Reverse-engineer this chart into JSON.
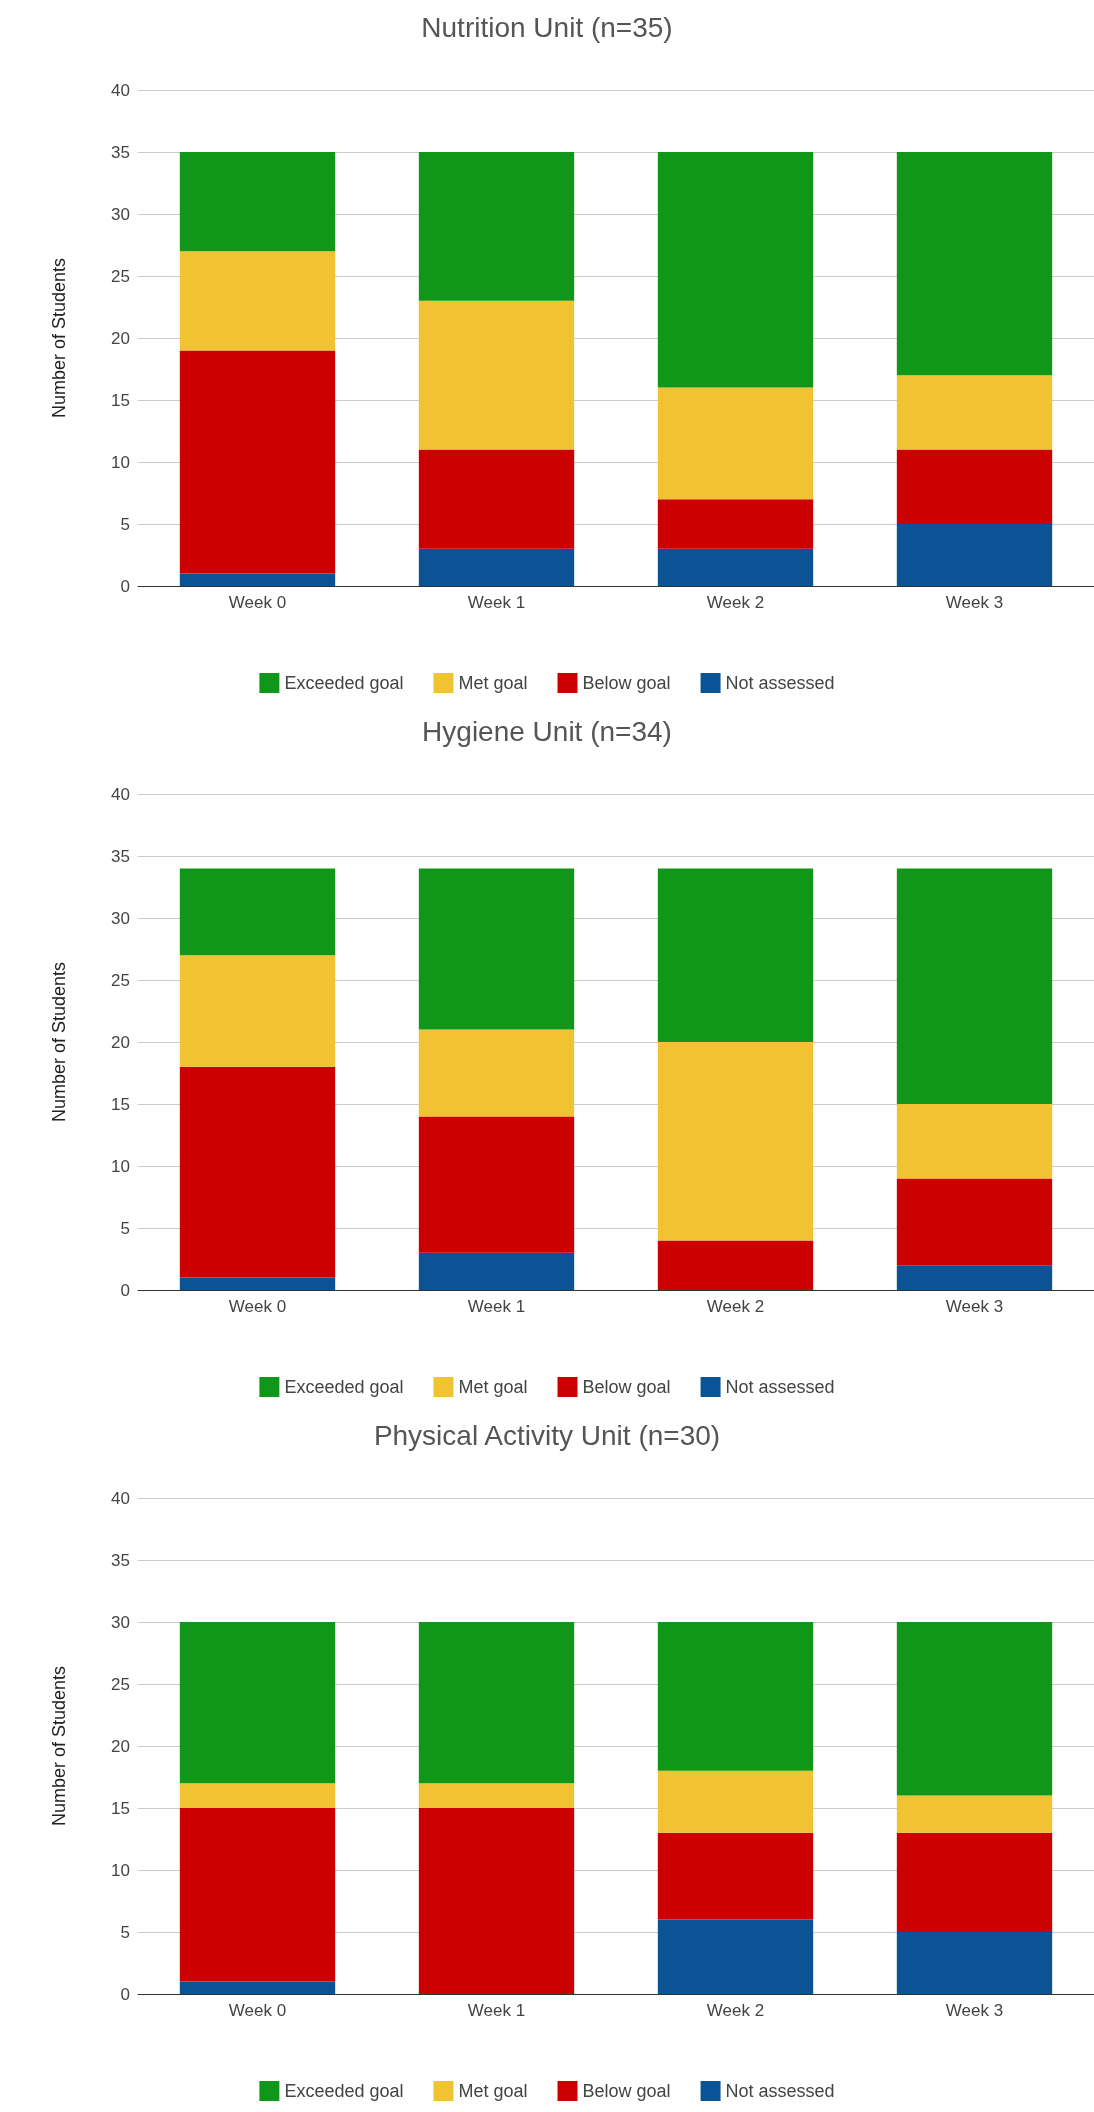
{
  "chart_data": [
    {
      "type": "bar",
      "title": "Nutrition Unit (n=35)",
      "ylabel": "Number of Students",
      "categories": [
        "Week 0",
        "Week 1",
        "Week 2",
        "Week 3"
      ],
      "stacked": true,
      "ylim": [
        0,
        40
      ],
      "yticks": [
        0,
        5,
        10,
        15,
        20,
        25,
        30,
        35,
        40
      ],
      "grid": "y",
      "legend": "bottom",
      "series": [
        {
          "name": "Not assessed",
          "color": "#0b5394",
          "values": [
            1,
            3,
            3,
            5
          ]
        },
        {
          "name": "Below goal",
          "color": "#cc0000",
          "values": [
            18,
            8,
            4,
            6
          ]
        },
        {
          "name": "Met goal",
          "color": "#f1c232",
          "values": [
            8,
            12,
            9,
            6
          ]
        },
        {
          "name": "Exceeded goal",
          "color": "#109618",
          "values": [
            8,
            12,
            19,
            18
          ]
        }
      ]
    },
    {
      "type": "bar",
      "title": "Hygiene Unit (n=34)",
      "ylabel": "Number of Students",
      "categories": [
        "Week 0",
        "Week 1",
        "Week 2",
        "Week 3"
      ],
      "stacked": true,
      "ylim": [
        0,
        40
      ],
      "yticks": [
        0,
        5,
        10,
        15,
        20,
        25,
        30,
        35,
        40
      ],
      "grid": "y",
      "legend": "bottom",
      "series": [
        {
          "name": "Not assessed",
          "color": "#0b5394",
          "values": [
            1,
            3,
            0,
            2
          ]
        },
        {
          "name": "Below goal",
          "color": "#cc0000",
          "values": [
            17,
            11,
            4,
            7
          ]
        },
        {
          "name": "Met goal",
          "color": "#f1c232",
          "values": [
            9,
            7,
            16,
            6
          ]
        },
        {
          "name": "Exceeded goal",
          "color": "#109618",
          "values": [
            7,
            13,
            14,
            19
          ]
        }
      ]
    },
    {
      "type": "bar",
      "title": "Physical Activity Unit (n=30)",
      "ylabel": "Number of Students",
      "categories": [
        "Week 0",
        "Week 1",
        "Week 2",
        "Week 3"
      ],
      "stacked": true,
      "ylim": [
        0,
        40
      ],
      "yticks": [
        0,
        5,
        10,
        15,
        20,
        25,
        30,
        35,
        40
      ],
      "grid": "y",
      "legend": "bottom",
      "series": [
        {
          "name": "Not assessed",
          "color": "#0b5394",
          "values": [
            1,
            0,
            6,
            5
          ]
        },
        {
          "name": "Below goal",
          "color": "#cc0000",
          "values": [
            14,
            15,
            7,
            8
          ]
        },
        {
          "name": "Met goal",
          "color": "#f1c232",
          "values": [
            2,
            2,
            5,
            3
          ]
        },
        {
          "name": "Exceeded goal",
          "color": "#109618",
          "values": [
            13,
            13,
            12,
            14
          ]
        }
      ]
    }
  ]
}
